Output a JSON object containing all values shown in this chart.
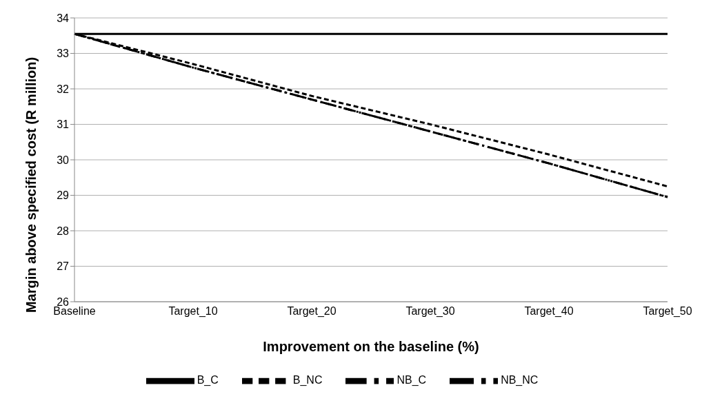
{
  "chart_data": {
    "type": "line",
    "xlabel": "Improvement on the baseline (%)",
    "ylabel": "Margin above specified cost (R million)",
    "categories": [
      "Baseline",
      "Target_10",
      "Target_20",
      "Target_30",
      "Target_40",
      "Target_50"
    ],
    "series": [
      {
        "name": "B_C",
        "color": "#000000",
        "line_style": "solid",
        "values": [
          33.55,
          33.55,
          33.55,
          33.55,
          33.55,
          33.55
        ]
      },
      {
        "name": "B_NC",
        "color": "#000000",
        "line_style": "dashed",
        "values": [
          33.55,
          32.7,
          31.8,
          31.0,
          30.15,
          29.25
        ]
      },
      {
        "name": "NB_C",
        "color": "#000000",
        "line_style": "dashdot",
        "values": [
          33.55,
          32.6,
          31.7,
          30.8,
          29.9,
          28.95
        ]
      },
      {
        "name": "NB_NC",
        "color": "#000000",
        "line_style": "dashdotdot",
        "values": [
          33.55,
          32.6,
          31.7,
          30.8,
          29.9,
          28.95
        ]
      }
    ],
    "ylim": [
      26,
      34
    ],
    "yticks": [
      26,
      27,
      28,
      29,
      30,
      31,
      32,
      33,
      34
    ],
    "grid": "y",
    "legend": "bottom",
    "marker": "none"
  }
}
